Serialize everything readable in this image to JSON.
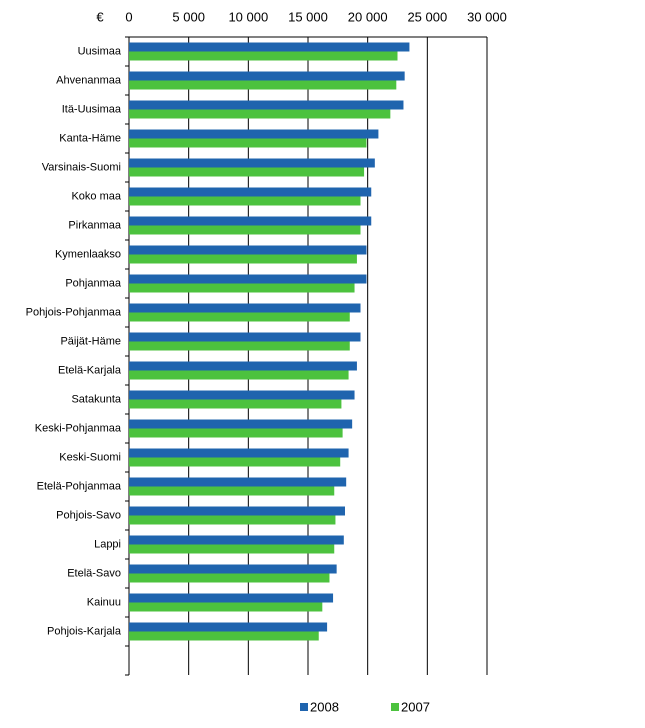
{
  "chart_data": {
    "type": "hbar",
    "axis_label": "€",
    "categories": [
      "Uusimaa",
      "Ahvenanmaa",
      "Itä-Uusimaa",
      "Kanta-Häme",
      "Varsinais-Suomi",
      "Koko maa",
      "Pirkanmaa",
      "Kymenlaakso",
      "Pohjanmaa",
      "Pohjois-Pohjanmaa",
      "Päijät-Häme",
      "Etelä-Karjala",
      "Satakunta",
      "Keski-Pohjanmaa",
      "Keski-Suomi",
      "Etelä-Pohjanmaa",
      "Pohjois-Savo",
      "Lappi",
      "Etelä-Savo",
      "Kainuu",
      "Pohjois-Karjala"
    ],
    "series": [
      {
        "name": "2008",
        "color": "#1f64ae",
        "values": [
          23500,
          23100,
          23000,
          20900,
          20600,
          20300,
          20300,
          19900,
          19900,
          19400,
          19400,
          19100,
          18900,
          18700,
          18400,
          18200,
          18100,
          18000,
          17400,
          17100,
          16600
        ]
      },
      {
        "name": "2007",
        "color": "#4cc23e",
        "values": [
          22500,
          22400,
          21900,
          19900,
          19700,
          19400,
          19400,
          19100,
          18900,
          18500,
          18500,
          18400,
          17800,
          17900,
          17700,
          17200,
          17300,
          17200,
          16800,
          16200,
          15900
        ]
      }
    ],
    "xlim": [
      0,
      30000
    ],
    "xticks": [
      0,
      {
        "value": 5000,
        "label": "5 000"
      },
      {
        "value": 10000,
        "label": "10 000"
      },
      {
        "value": 15000,
        "label": "15 000"
      },
      {
        "value": 20000,
        "label": "20 000"
      },
      {
        "value": 25000,
        "label": "25 000"
      },
      {
        "value": 30000,
        "label": "30 000"
      }
    ],
    "grid": true
  }
}
